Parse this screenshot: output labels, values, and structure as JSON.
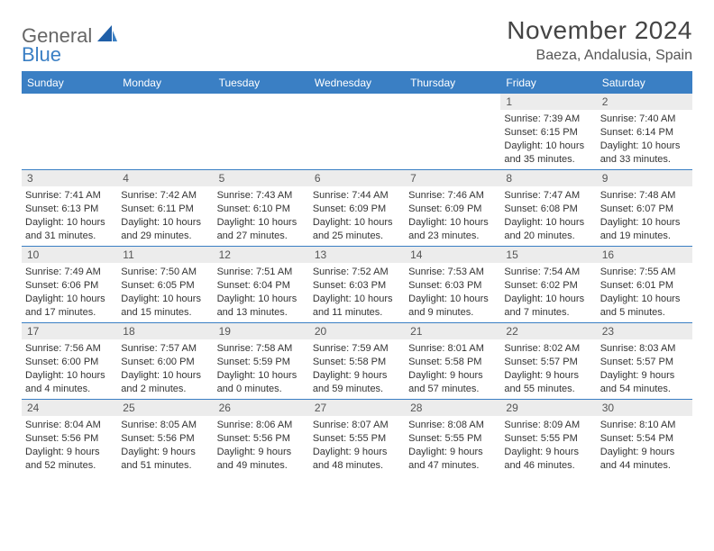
{
  "logo": {
    "word1": "General",
    "word2": "Blue"
  },
  "title": "November 2024",
  "location": "Baeza, Andalusia, Spain",
  "colors": {
    "accent": "#3a7fc4",
    "dayhead_bg": "#ececec",
    "text": "#333333",
    "muted": "#666666",
    "background": "#ffffff"
  },
  "daynames": [
    "Sunday",
    "Monday",
    "Tuesday",
    "Wednesday",
    "Thursday",
    "Friday",
    "Saturday"
  ],
  "weeks": [
    [
      {
        "num": "",
        "sunrise": "",
        "sunset": "",
        "daylight": "",
        "empty": true
      },
      {
        "num": "",
        "sunrise": "",
        "sunset": "",
        "daylight": "",
        "empty": true
      },
      {
        "num": "",
        "sunrise": "",
        "sunset": "",
        "daylight": "",
        "empty": true
      },
      {
        "num": "",
        "sunrise": "",
        "sunset": "",
        "daylight": "",
        "empty": true
      },
      {
        "num": "",
        "sunrise": "",
        "sunset": "",
        "daylight": "",
        "empty": true
      },
      {
        "num": "1",
        "sunrise": "Sunrise: 7:39 AM",
        "sunset": "Sunset: 6:15 PM",
        "daylight": "Daylight: 10 hours and 35 minutes."
      },
      {
        "num": "2",
        "sunrise": "Sunrise: 7:40 AM",
        "sunset": "Sunset: 6:14 PM",
        "daylight": "Daylight: 10 hours and 33 minutes."
      }
    ],
    [
      {
        "num": "3",
        "sunrise": "Sunrise: 7:41 AM",
        "sunset": "Sunset: 6:13 PM",
        "daylight": "Daylight: 10 hours and 31 minutes."
      },
      {
        "num": "4",
        "sunrise": "Sunrise: 7:42 AM",
        "sunset": "Sunset: 6:11 PM",
        "daylight": "Daylight: 10 hours and 29 minutes."
      },
      {
        "num": "5",
        "sunrise": "Sunrise: 7:43 AM",
        "sunset": "Sunset: 6:10 PM",
        "daylight": "Daylight: 10 hours and 27 minutes."
      },
      {
        "num": "6",
        "sunrise": "Sunrise: 7:44 AM",
        "sunset": "Sunset: 6:09 PM",
        "daylight": "Daylight: 10 hours and 25 minutes."
      },
      {
        "num": "7",
        "sunrise": "Sunrise: 7:46 AM",
        "sunset": "Sunset: 6:09 PM",
        "daylight": "Daylight: 10 hours and 23 minutes."
      },
      {
        "num": "8",
        "sunrise": "Sunrise: 7:47 AM",
        "sunset": "Sunset: 6:08 PM",
        "daylight": "Daylight: 10 hours and 20 minutes."
      },
      {
        "num": "9",
        "sunrise": "Sunrise: 7:48 AM",
        "sunset": "Sunset: 6:07 PM",
        "daylight": "Daylight: 10 hours and 19 minutes."
      }
    ],
    [
      {
        "num": "10",
        "sunrise": "Sunrise: 7:49 AM",
        "sunset": "Sunset: 6:06 PM",
        "daylight": "Daylight: 10 hours and 17 minutes."
      },
      {
        "num": "11",
        "sunrise": "Sunrise: 7:50 AM",
        "sunset": "Sunset: 6:05 PM",
        "daylight": "Daylight: 10 hours and 15 minutes."
      },
      {
        "num": "12",
        "sunrise": "Sunrise: 7:51 AM",
        "sunset": "Sunset: 6:04 PM",
        "daylight": "Daylight: 10 hours and 13 minutes."
      },
      {
        "num": "13",
        "sunrise": "Sunrise: 7:52 AM",
        "sunset": "Sunset: 6:03 PM",
        "daylight": "Daylight: 10 hours and 11 minutes."
      },
      {
        "num": "14",
        "sunrise": "Sunrise: 7:53 AM",
        "sunset": "Sunset: 6:03 PM",
        "daylight": "Daylight: 10 hours and 9 minutes."
      },
      {
        "num": "15",
        "sunrise": "Sunrise: 7:54 AM",
        "sunset": "Sunset: 6:02 PM",
        "daylight": "Daylight: 10 hours and 7 minutes."
      },
      {
        "num": "16",
        "sunrise": "Sunrise: 7:55 AM",
        "sunset": "Sunset: 6:01 PM",
        "daylight": "Daylight: 10 hours and 5 minutes."
      }
    ],
    [
      {
        "num": "17",
        "sunrise": "Sunrise: 7:56 AM",
        "sunset": "Sunset: 6:00 PM",
        "daylight": "Daylight: 10 hours and 4 minutes."
      },
      {
        "num": "18",
        "sunrise": "Sunrise: 7:57 AM",
        "sunset": "Sunset: 6:00 PM",
        "daylight": "Daylight: 10 hours and 2 minutes."
      },
      {
        "num": "19",
        "sunrise": "Sunrise: 7:58 AM",
        "sunset": "Sunset: 5:59 PM",
        "daylight": "Daylight: 10 hours and 0 minutes."
      },
      {
        "num": "20",
        "sunrise": "Sunrise: 7:59 AM",
        "sunset": "Sunset: 5:58 PM",
        "daylight": "Daylight: 9 hours and 59 minutes."
      },
      {
        "num": "21",
        "sunrise": "Sunrise: 8:01 AM",
        "sunset": "Sunset: 5:58 PM",
        "daylight": "Daylight: 9 hours and 57 minutes."
      },
      {
        "num": "22",
        "sunrise": "Sunrise: 8:02 AM",
        "sunset": "Sunset: 5:57 PM",
        "daylight": "Daylight: 9 hours and 55 minutes."
      },
      {
        "num": "23",
        "sunrise": "Sunrise: 8:03 AM",
        "sunset": "Sunset: 5:57 PM",
        "daylight": "Daylight: 9 hours and 54 minutes."
      }
    ],
    [
      {
        "num": "24",
        "sunrise": "Sunrise: 8:04 AM",
        "sunset": "Sunset: 5:56 PM",
        "daylight": "Daylight: 9 hours and 52 minutes."
      },
      {
        "num": "25",
        "sunrise": "Sunrise: 8:05 AM",
        "sunset": "Sunset: 5:56 PM",
        "daylight": "Daylight: 9 hours and 51 minutes."
      },
      {
        "num": "26",
        "sunrise": "Sunrise: 8:06 AM",
        "sunset": "Sunset: 5:56 PM",
        "daylight": "Daylight: 9 hours and 49 minutes."
      },
      {
        "num": "27",
        "sunrise": "Sunrise: 8:07 AM",
        "sunset": "Sunset: 5:55 PM",
        "daylight": "Daylight: 9 hours and 48 minutes."
      },
      {
        "num": "28",
        "sunrise": "Sunrise: 8:08 AM",
        "sunset": "Sunset: 5:55 PM",
        "daylight": "Daylight: 9 hours and 47 minutes."
      },
      {
        "num": "29",
        "sunrise": "Sunrise: 8:09 AM",
        "sunset": "Sunset: 5:55 PM",
        "daylight": "Daylight: 9 hours and 46 minutes."
      },
      {
        "num": "30",
        "sunrise": "Sunrise: 8:10 AM",
        "sunset": "Sunset: 5:54 PM",
        "daylight": "Daylight: 9 hours and 44 minutes."
      }
    ]
  ]
}
